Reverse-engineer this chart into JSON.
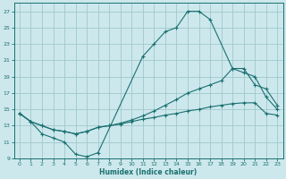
{
  "xlabel": "Humidex (Indice chaleur)",
  "background_color": "#cce8ec",
  "grid_color": "#a0c8cc",
  "line_color": "#1a7070",
  "xlim": [
    -0.5,
    23.5
  ],
  "ylim": [
    9,
    28
  ],
  "xticks": [
    0,
    1,
    2,
    3,
    4,
    5,
    6,
    7,
    8,
    9,
    10,
    11,
    12,
    13,
    14,
    15,
    16,
    17,
    18,
    19,
    20,
    21,
    22,
    23
  ],
  "yticks": [
    9,
    11,
    13,
    15,
    17,
    19,
    21,
    23,
    25,
    27
  ],
  "curve1_x": [
    0,
    1,
    2,
    3,
    4,
    5,
    6,
    7,
    11,
    12,
    13,
    14,
    15,
    16,
    17,
    19,
    20,
    21,
    22,
    23
  ],
  "curve1_y": [
    14.5,
    13.5,
    12.0,
    11.5,
    11.0,
    9.5,
    9.2,
    9.7,
    21.5,
    23.0,
    24.5,
    25.0,
    27.0,
    27.0,
    26.0,
    20.0,
    19.5,
    19.0,
    16.5,
    15.0
  ],
  "curve2_x": [
    0,
    1,
    2,
    3,
    4,
    5,
    6,
    7,
    8,
    9,
    10,
    11,
    12,
    13,
    14,
    15,
    16,
    17,
    18,
    19,
    20,
    21,
    22,
    23
  ],
  "curve2_y": [
    14.5,
    13.5,
    13.0,
    12.5,
    12.3,
    12.0,
    12.3,
    12.8,
    13.0,
    13.3,
    13.7,
    14.2,
    14.8,
    15.5,
    16.2,
    17.0,
    17.5,
    18.0,
    18.5,
    20.0,
    20.0,
    18.0,
    17.5,
    15.5
  ],
  "curve3_x": [
    0,
    1,
    2,
    3,
    4,
    5,
    6,
    7,
    8,
    9,
    10,
    11,
    12,
    13,
    14,
    15,
    16,
    17,
    18,
    19,
    20,
    21,
    22,
    23
  ],
  "curve3_y": [
    14.5,
    13.5,
    13.0,
    12.5,
    12.3,
    12.0,
    12.3,
    12.8,
    13.0,
    13.2,
    13.5,
    13.8,
    14.0,
    14.3,
    14.5,
    14.8,
    15.0,
    15.3,
    15.5,
    15.7,
    15.8,
    15.8,
    14.5,
    14.3
  ]
}
